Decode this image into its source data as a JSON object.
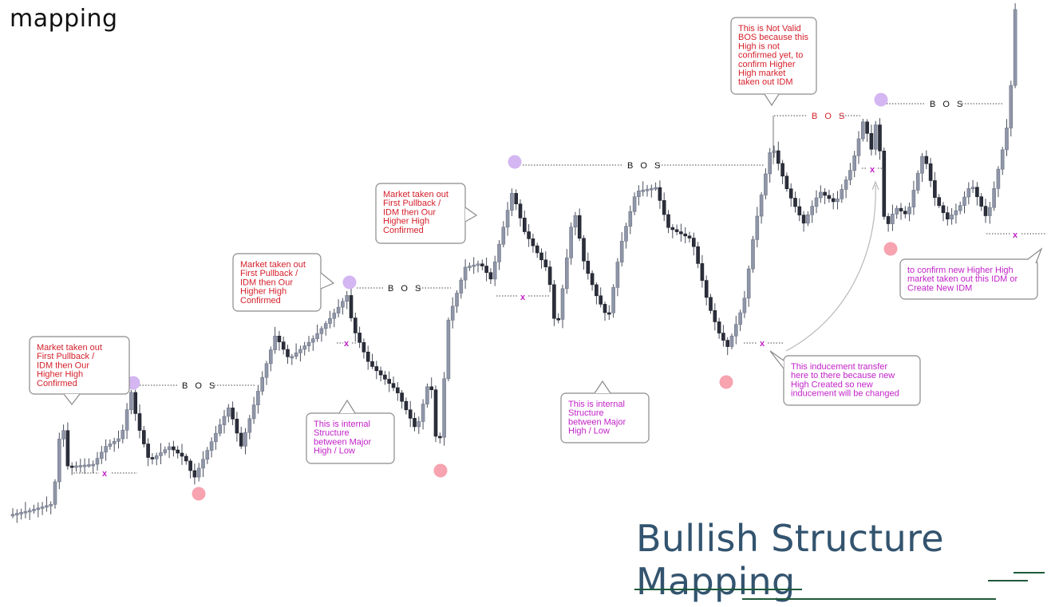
{
  "corner_label": "mapping",
  "title": "Bullish Structure Mapping",
  "chart_data": {
    "type": "candlestick",
    "bos_label": "B O S",
    "idm_marker": "x",
    "callouts": [
      {
        "id": "c1",
        "lines": [
          "Market taken out",
          "First Pullback /",
          "IDM then Our",
          "Higher High",
          "Confirmed"
        ]
      },
      {
        "id": "c2",
        "lines": [
          "Market taken out",
          "First Pullback /",
          "IDM then Our",
          "Higher High",
          "Confirmed"
        ]
      },
      {
        "id": "c3",
        "lines": [
          "Market taken out",
          "First Pullback /",
          "IDM then Our",
          "Higher High",
          "Confirmed"
        ]
      },
      {
        "id": "c4",
        "lines": [
          "This is Not Valid",
          "BOS because this",
          "High is not",
          "confirmed yet, to",
          "confirm Higher",
          "High market",
          "taken out IDM"
        ]
      },
      {
        "id": "c5",
        "lines": [
          "This is internal",
          "Structure",
          "between Major",
          "High / Low"
        ]
      },
      {
        "id": "c6",
        "lines": [
          "This is internal",
          "Structure",
          "between Major",
          "High / Low"
        ]
      },
      {
        "id": "c7",
        "lines": [
          "This inducement transfer",
          "here to there because new",
          "High Created so new",
          "inducement will be changed"
        ]
      },
      {
        "id": "c8",
        "lines": [
          "to confirm new Higher High",
          "market taken out this IDM or",
          "Create New IDM"
        ]
      }
    ],
    "colors": {
      "bull_candle": "#8f96a8",
      "bear_candle": "#2b2e3b",
      "high_dot": "#d4b6f2",
      "low_dot": "#f7a3b0",
      "callout_red": "#d51f2a",
      "callout_magenta": "#c222c8",
      "title": "#33546f",
      "underline": "#1e5a3a"
    },
    "legend": "none",
    "grid": false
  }
}
